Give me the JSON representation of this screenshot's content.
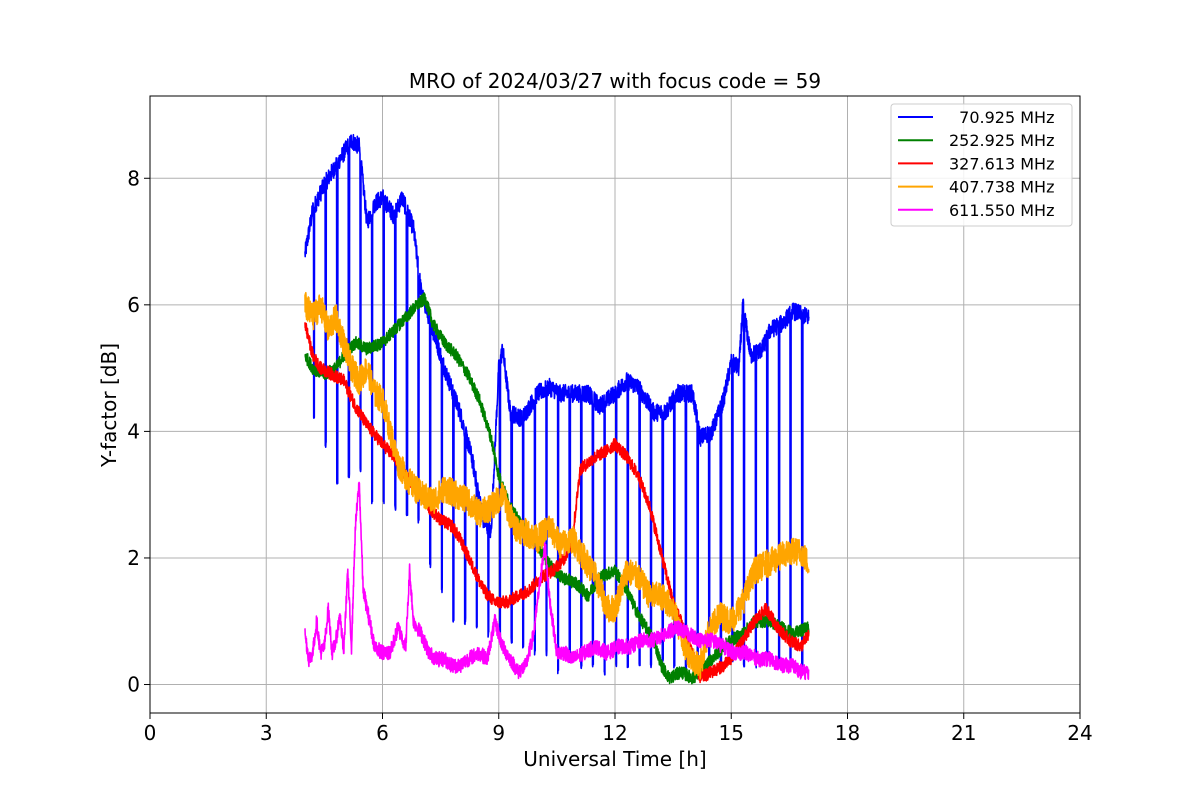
{
  "chart_data": {
    "type": "line",
    "title": "MRO of 2024/03/27 with focus code = 59",
    "xlabel": "Universal Time [h]",
    "ylabel": "Y-factor [dB]",
    "xlim": [
      0,
      24
    ],
    "ylim": [
      -0.45,
      9.3
    ],
    "xticks": [
      0,
      3,
      6,
      9,
      12,
      15,
      18,
      21,
      24
    ],
    "yticks": [
      0,
      2,
      4,
      6,
      8
    ],
    "grid": true,
    "legend_position": "top-right",
    "dip_interval_h": 0.3,
    "series": [
      {
        "name": "  70.925 MHz",
        "color": "#0000ff",
        "x": [
          4.0,
          4.2,
          4.5,
          4.8,
          5.0,
          5.2,
          5.4,
          5.6,
          5.8,
          6.0,
          6.3,
          6.5,
          6.8,
          7.0,
          7.3,
          7.6,
          8.0,
          8.3,
          8.6,
          8.8,
          9.0,
          9.1,
          9.3,
          9.6,
          10.0,
          10.3,
          10.6,
          11.0,
          11.3,
          11.6,
          12.0,
          12.3,
          12.6,
          13.0,
          13.3,
          13.6,
          14.0,
          14.2,
          14.5,
          14.8,
          15.0,
          15.2,
          15.3,
          15.5,
          15.8,
          16.0,
          16.3,
          16.6,
          17.0
        ],
        "y": [
          6.8,
          7.5,
          7.9,
          8.2,
          8.4,
          8.6,
          8.5,
          7.3,
          7.6,
          7.7,
          7.4,
          7.7,
          7.2,
          6.2,
          5.6,
          5.0,
          4.3,
          3.6,
          2.6,
          2.4,
          5.0,
          5.3,
          4.3,
          4.2,
          4.6,
          4.7,
          4.6,
          4.6,
          4.6,
          4.4,
          4.6,
          4.8,
          4.7,
          4.3,
          4.3,
          4.6,
          4.6,
          3.9,
          4.0,
          4.5,
          5.1,
          5.0,
          6.0,
          5.2,
          5.3,
          5.6,
          5.7,
          5.9,
          5.8
        ],
        "dip_low": [
          4.2,
          3.8,
          3.2,
          3.3,
          3.4,
          2.9,
          2.9,
          2.8,
          2.7,
          2.6,
          1.9,
          1.5,
          1.0,
          1.0,
          0.9,
          0.8,
          0.7,
          0.7,
          0.6,
          0.5,
          0.5,
          0.2,
          0.4,
          0.3,
          0.3,
          0.2,
          0.3,
          0.3,
          0.3,
          0.3,
          0.4,
          0.3,
          0.2,
          0.3,
          0.3,
          0.3,
          0.4,
          0.3,
          0.3,
          0.4,
          0.3,
          0.3,
          0.3,
          0.4
        ]
      },
      {
        "name": "252.925 MHz",
        "color": "#008000",
        "x": [
          4.0,
          4.2,
          4.5,
          4.8,
          5.0,
          5.3,
          5.6,
          6.0,
          6.3,
          6.6,
          6.9,
          7.1,
          7.3,
          7.6,
          7.9,
          8.2,
          8.5,
          8.8,
          9.0,
          9.3,
          9.6,
          10.0,
          10.3,
          10.6,
          11.0,
          11.3,
          11.6,
          12.0,
          12.3,
          12.6,
          13.0,
          13.2,
          13.4,
          13.7,
          14.0,
          14.2,
          14.5,
          14.8,
          15.0,
          15.3,
          15.6,
          16.0,
          16.3,
          16.6,
          17.0
        ],
        "y": [
          5.2,
          5.0,
          4.9,
          5.0,
          5.2,
          5.4,
          5.3,
          5.4,
          5.6,
          5.8,
          6.0,
          6.1,
          5.7,
          5.4,
          5.2,
          4.9,
          4.5,
          3.9,
          3.3,
          2.8,
          2.5,
          2.2,
          1.9,
          1.7,
          1.6,
          1.4,
          1.7,
          1.8,
          1.5,
          1.1,
          0.7,
          0.3,
          0.1,
          0.2,
          0.1,
          0.2,
          0.4,
          0.6,
          0.7,
          0.8,
          1.0,
          1.0,
          0.9,
          0.8,
          0.9
        ]
      },
      {
        "name": "327.613 MHz",
        "color": "#ff0000",
        "x": [
          4.0,
          4.2,
          4.4,
          4.7,
          5.0,
          5.3,
          5.6,
          6.0,
          6.3,
          6.6,
          6.9,
          7.2,
          7.5,
          7.8,
          8.0,
          8.3,
          8.6,
          8.9,
          9.2,
          9.5,
          9.8,
          10.1,
          10.4,
          10.7,
          10.9,
          11.1,
          11.3,
          11.5,
          11.8,
          12.0,
          12.3,
          12.6,
          12.9,
          13.1,
          13.3,
          13.5,
          13.7,
          14.0,
          14.2,
          14.5,
          14.8,
          15.0,
          15.3,
          15.6,
          15.9,
          16.2,
          16.5,
          16.8,
          17.0
        ],
        "y": [
          5.7,
          5.2,
          5.0,
          4.9,
          4.8,
          4.4,
          4.1,
          3.8,
          3.6,
          3.3,
          3.1,
          2.8,
          2.6,
          2.5,
          2.3,
          1.9,
          1.5,
          1.3,
          1.3,
          1.4,
          1.5,
          1.7,
          1.8,
          2.0,
          2.3,
          3.4,
          3.5,
          3.6,
          3.7,
          3.8,
          3.6,
          3.3,
          2.8,
          2.3,
          1.8,
          1.3,
          1.0,
          0.5,
          0.1,
          0.2,
          0.3,
          0.4,
          0.7,
          1.0,
          1.2,
          0.9,
          0.7,
          0.6,
          0.8
        ]
      },
      {
        "name": "407.738 MHz",
        "color": "#ffa500",
        "x": [
          4.0,
          4.2,
          4.4,
          4.6,
          4.8,
          5.0,
          5.2,
          5.4,
          5.6,
          5.8,
          6.0,
          6.2,
          6.4,
          6.7,
          7.0,
          7.3,
          7.6,
          7.9,
          8.2,
          8.5,
          8.8,
          9.1,
          9.4,
          9.7,
          10.0,
          10.3,
          10.6,
          10.9,
          11.2,
          11.5,
          11.8,
          12.0,
          12.3,
          12.6,
          12.9,
          13.2,
          13.5,
          13.8,
          14.0,
          14.2,
          14.4,
          14.7,
          15.0,
          15.3,
          15.6,
          15.9,
          16.2,
          16.5,
          16.8,
          17.0
        ],
        "y": [
          6.0,
          5.8,
          6.0,
          5.6,
          5.8,
          5.4,
          5.0,
          4.8,
          5.0,
          4.6,
          4.5,
          4.0,
          3.5,
          3.2,
          3.0,
          2.9,
          3.1,
          3.0,
          2.9,
          2.7,
          2.8,
          3.0,
          2.5,
          2.4,
          2.3,
          2.5,
          2.2,
          2.3,
          2.0,
          1.7,
          1.2,
          1.2,
          1.8,
          1.7,
          1.4,
          1.4,
          1.2,
          0.6,
          0.4,
          0.3,
          0.8,
          1.1,
          1.0,
          1.3,
          1.8,
          1.9,
          2.0,
          2.1,
          2.1,
          1.9
        ]
      },
      {
        "name": "611.550 MHz",
        "color": "#ff00ff",
        "x": [
          4.0,
          4.1,
          4.2,
          4.3,
          4.4,
          4.5,
          4.6,
          4.7,
          4.8,
          4.9,
          5.0,
          5.1,
          5.2,
          5.3,
          5.4,
          5.5,
          5.6,
          5.8,
          6.0,
          6.2,
          6.4,
          6.6,
          6.7,
          6.8,
          7.0,
          7.2,
          7.4,
          7.6,
          7.8,
          8.0,
          8.2,
          8.5,
          8.7,
          8.9,
          9.1,
          9.3,
          9.5,
          9.7,
          9.9,
          10.1,
          10.2,
          10.3,
          10.5,
          10.7,
          10.9,
          11.2,
          11.5,
          11.8,
          12.1,
          12.4,
          12.7,
          13.0,
          13.3,
          13.6,
          13.9,
          14.2,
          14.5,
          14.8,
          15.1,
          15.4,
          15.7,
          16.0,
          16.3,
          16.6,
          16.8,
          17.0
        ],
        "y": [
          0.8,
          0.4,
          0.5,
          1.0,
          0.5,
          0.6,
          1.2,
          0.5,
          0.7,
          1.1,
          0.5,
          1.8,
          0.6,
          2.5,
          3.2,
          1.5,
          1.2,
          0.6,
          0.5,
          0.5,
          0.9,
          0.6,
          1.8,
          1.0,
          0.8,
          0.5,
          0.4,
          0.4,
          0.3,
          0.3,
          0.4,
          0.5,
          0.4,
          1.0,
          0.6,
          0.4,
          0.2,
          0.3,
          0.8,
          1.8,
          2.2,
          1.4,
          0.5,
          0.5,
          0.4,
          0.5,
          0.6,
          0.5,
          0.6,
          0.6,
          0.7,
          0.7,
          0.8,
          0.9,
          0.8,
          0.7,
          0.7,
          0.6,
          0.5,
          0.5,
          0.4,
          0.4,
          0.3,
          0.3,
          0.2,
          0.2
        ]
      }
    ]
  }
}
